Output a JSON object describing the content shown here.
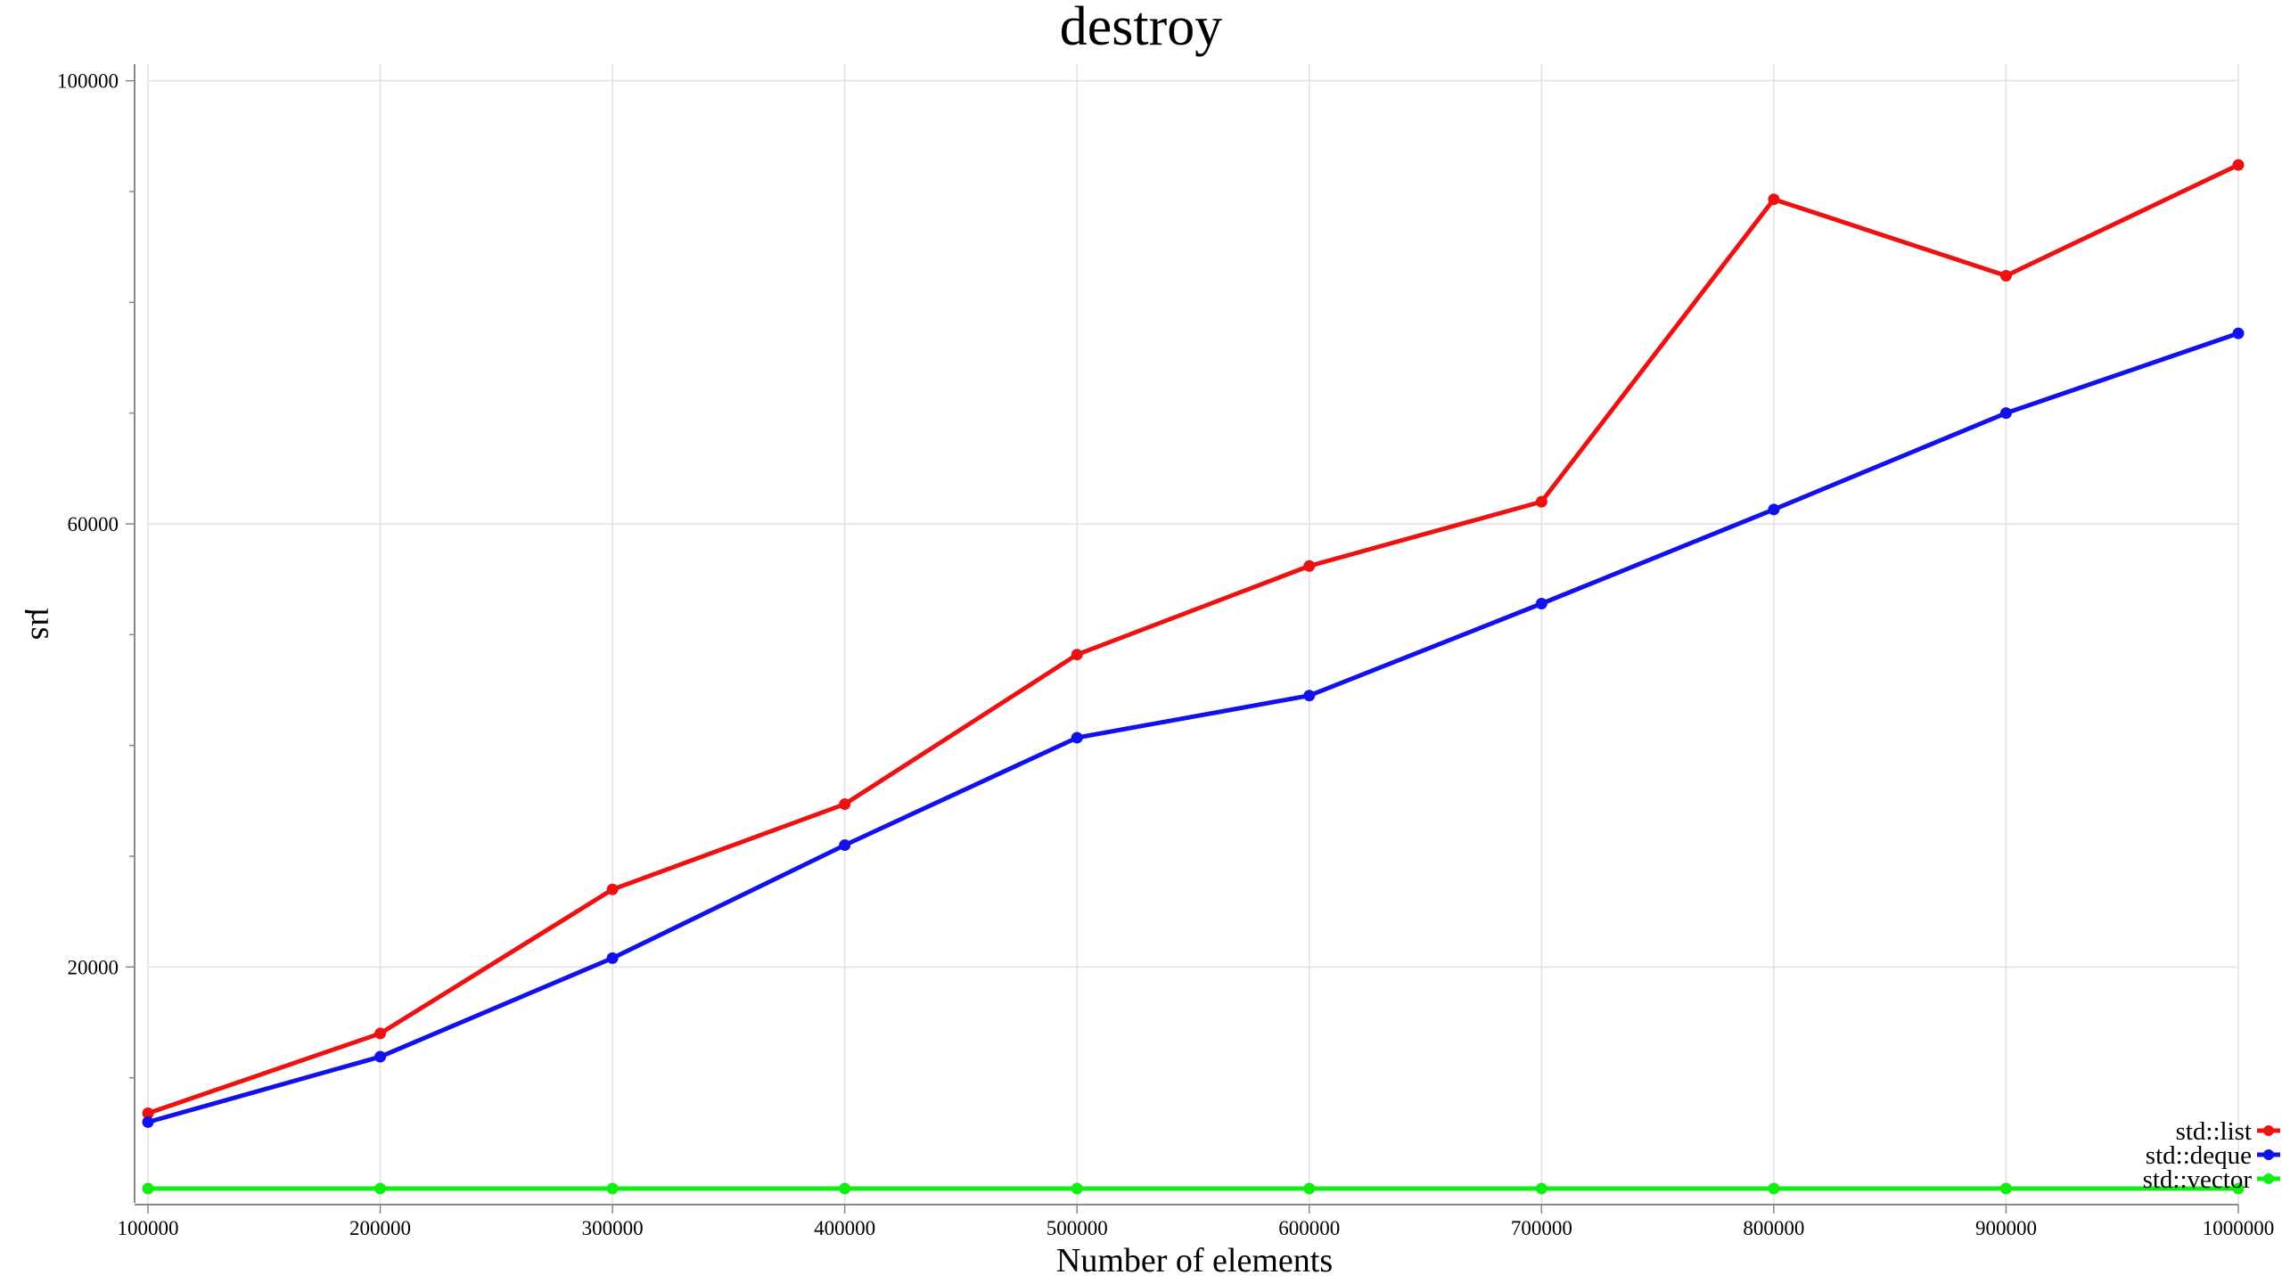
{
  "chart_data": {
    "type": "line",
    "title": "destroy",
    "xlabel": "Number of elements",
    "ylabel": "µs",
    "x": [
      100000,
      200000,
      300000,
      400000,
      500000,
      600000,
      700000,
      800000,
      900000,
      1000000
    ],
    "x_tick_labels": [
      "100000",
      "200000",
      "300000",
      "400000",
      "500000",
      "600000",
      "700000",
      "800000",
      "900000",
      "1000000"
    ],
    "y_tick_labels": [
      "100000",
      "60000",
      "20000"
    ],
    "y_major_ticks": [
      100000,
      60000,
      20000
    ],
    "y_minor_ticks": [
      10000,
      30000,
      40000,
      50000,
      70000,
      80000,
      90000
    ],
    "xlim": [
      100000,
      1000000
    ],
    "ylim": [
      0,
      101500
    ],
    "grid": true,
    "legend_position": "bottom-right",
    "series": [
      {
        "name": "std::list",
        "color": "#ee1111",
        "values": [
          6800,
          14000,
          27000,
          34700,
          48200,
          56200,
          62000,
          89300,
          82400,
          92400
        ]
      },
      {
        "name": "std::deque",
        "color": "#1111ee",
        "values": [
          6000,
          11900,
          20800,
          31000,
          40700,
          44500,
          52800,
          61300,
          70000,
          77200
        ]
      },
      {
        "name": "std::vector",
        "color": "#11ee11",
        "values": [
          0,
          0,
          0,
          0,
          0,
          0,
          0,
          0,
          0,
          0
        ]
      }
    ]
  }
}
